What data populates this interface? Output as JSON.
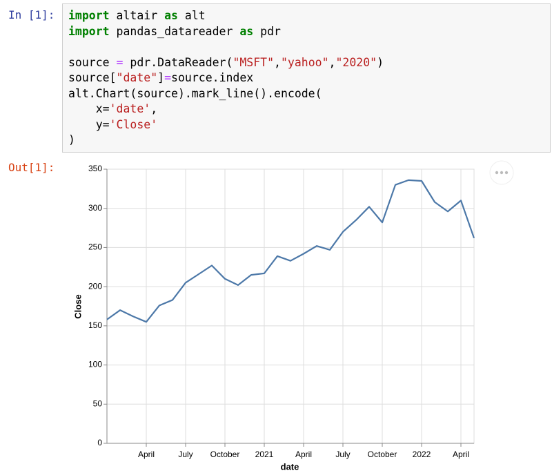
{
  "input_prompt": "In [1]:",
  "output_prompt": "Out[1]:",
  "code": {
    "lines": [
      [
        {
          "text": "import",
          "color": "#008000"
        },
        {
          "text": " altair ",
          "color": "#000000"
        },
        {
          "text": "as",
          "color": "#008000"
        },
        {
          "text": " alt",
          "color": "#000000"
        }
      ],
      [
        {
          "text": "import",
          "color": "#008000"
        },
        {
          "text": " pandas_datareader ",
          "color": "#000000"
        },
        {
          "text": "as",
          "color": "#008000"
        },
        {
          "text": " pdr",
          "color": "#000000"
        }
      ],
      [],
      [
        {
          "text": "source ",
          "color": "#000000"
        },
        {
          "text": "=",
          "color": "#aa22ff"
        },
        {
          "text": " pdr.DataReader(",
          "color": "#000000"
        },
        {
          "text": "\"MSFT\"",
          "color": "#ba2121"
        },
        {
          "text": ",",
          "color": "#000000"
        },
        {
          "text": "\"yahoo\"",
          "color": "#ba2121"
        },
        {
          "text": ",",
          "color": "#000000"
        },
        {
          "text": "\"2020\"",
          "color": "#ba2121"
        },
        {
          "text": ")",
          "color": "#000000"
        }
      ],
      [
        {
          "text": "source[",
          "color": "#000000"
        },
        {
          "text": "\"date\"",
          "color": "#ba2121"
        },
        {
          "text": "]",
          "color": "#000000"
        },
        {
          "text": "=",
          "color": "#aa22ff"
        },
        {
          "text": "source.index",
          "color": "#000000"
        }
      ],
      [
        {
          "text": "alt.Chart(source).mark_line().encode(",
          "color": "#000000"
        }
      ],
      [
        {
          "text": "    x=",
          "color": "#000000"
        },
        {
          "text": "'date'",
          "color": "#ba2121"
        },
        {
          "text": ",",
          "color": "#000000"
        }
      ],
      [
        {
          "text": "    y=",
          "color": "#000000"
        },
        {
          "text": "'Close'",
          "color": "#ba2121"
        }
      ],
      [
        {
          "text": ")",
          "color": "#000000"
        }
      ]
    ]
  },
  "chart_data": {
    "type": "line",
    "x_label": "date",
    "y_label": "Close",
    "x": [
      "2020-01",
      "2020-02",
      "2020-03",
      "2020-04",
      "2020-05",
      "2020-06",
      "2020-07",
      "2020-08",
      "2020-09",
      "2020-10",
      "2020-11",
      "2020-12",
      "2021-01",
      "2021-02",
      "2021-03",
      "2021-04",
      "2021-05",
      "2021-06",
      "2021-07",
      "2021-08",
      "2021-09",
      "2021-10",
      "2021-11",
      "2021-12",
      "2022-01",
      "2022-02",
      "2022-03",
      "2022-04",
      "2022-05"
    ],
    "series": [
      {
        "name": "Close",
        "color": "#4c78a8",
        "values": [
          158,
          170,
          162,
          155,
          176,
          183,
          205,
          216,
          227,
          210,
          202,
          215,
          217,
          239,
          233,
          242,
          252,
          247,
          270,
          285,
          302,
          282,
          330,
          336,
          335,
          308,
          296,
          310,
          262
        ]
      }
    ],
    "xlim": [
      "2020-01",
      "2022-05"
    ],
    "xticks": [
      {
        "value": "2020-04",
        "label": "April"
      },
      {
        "value": "2020-07",
        "label": "July"
      },
      {
        "value": "2020-10",
        "label": "October"
      },
      {
        "value": "2021-01",
        "label": "2021"
      },
      {
        "value": "2021-04",
        "label": "April"
      },
      {
        "value": "2021-07",
        "label": "July"
      },
      {
        "value": "2021-10",
        "label": "October"
      },
      {
        "value": "2022-01",
        "label": "2022"
      },
      {
        "value": "2022-04",
        "label": "April"
      }
    ],
    "ylim": [
      0,
      350
    ],
    "yticks": [
      0,
      50,
      100,
      150,
      200,
      250,
      300,
      350
    ],
    "grid": true
  }
}
